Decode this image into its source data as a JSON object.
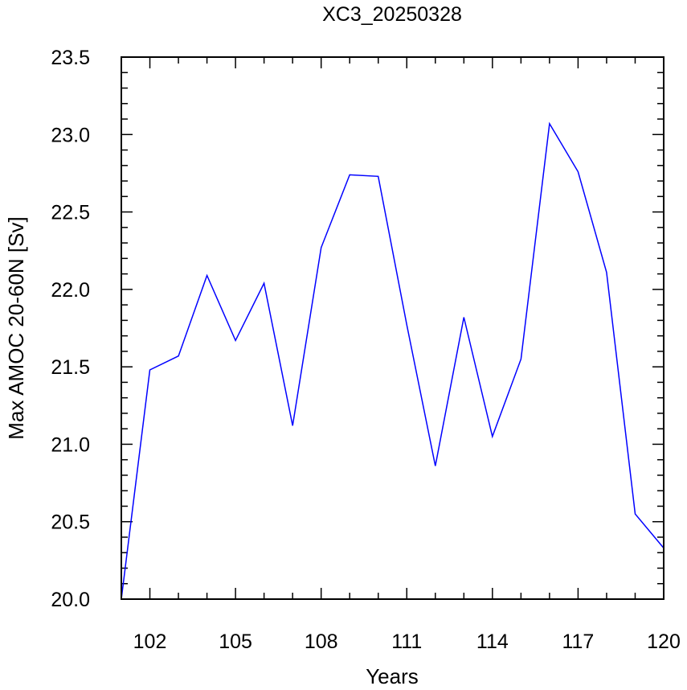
{
  "chart_data": {
    "type": "line",
    "title": "XC3_20250328",
    "xlabel": "Years",
    "ylabel": "Max AMOC 20-60N [Sv]",
    "xlim": [
      101,
      120
    ],
    "ylim": [
      20.0,
      23.5
    ],
    "x_ticks": [
      102,
      105,
      108,
      111,
      114,
      117,
      120
    ],
    "x_tick_labels": [
      "102",
      "105",
      "108",
      "111",
      "114",
      "117",
      "120"
    ],
    "y_ticks": [
      20.0,
      20.5,
      21.0,
      21.5,
      22.0,
      22.5,
      23.0,
      23.5
    ],
    "y_tick_labels": [
      "20.0",
      "20.5",
      "21.0",
      "21.5",
      "22.0",
      "22.5",
      "23.0",
      "23.5"
    ],
    "grid": false,
    "line_color": "#0000ff",
    "series": [
      {
        "x": [
          101,
          102,
          103,
          104,
          105,
          106,
          107,
          108,
          109,
          110,
          111,
          112,
          113,
          114,
          115,
          116,
          117,
          118,
          119,
          120
        ],
        "values": [
          20.0,
          21.48,
          21.57,
          22.09,
          21.67,
          22.04,
          21.12,
          22.27,
          22.74,
          22.73,
          21.77,
          20.86,
          21.82,
          21.05,
          21.55,
          23.07,
          22.76,
          22.11,
          20.55,
          20.33
        ]
      }
    ]
  }
}
